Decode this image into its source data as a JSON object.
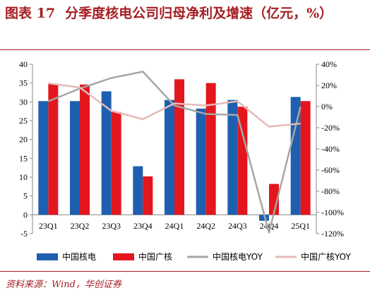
{
  "header": {
    "figure_label": "图表 17",
    "title": "分季度核电公司归母净利及增速（亿元，%）"
  },
  "footer": {
    "source": "资料来源：Wind，华创证券"
  },
  "colors": {
    "cgn_bar": "#1F5FAF",
    "cgn_guang_bar": "#E3161E",
    "cgn_yoy": "#A6A6A6",
    "guang_yoy": "#E6B9B8",
    "accent": "#A51E22"
  },
  "chart_data": {
    "type": "bar",
    "categories": [
      "23Q1",
      "23Q2",
      "23Q3",
      "23Q4",
      "24Q1",
      "24Q2",
      "24Q3",
      "24Q4",
      "25Q1"
    ],
    "series": [
      {
        "name": "中国核电",
        "type": "bar",
        "axis": "left",
        "values": [
          30.2,
          30.2,
          32.8,
          12.9,
          30.5,
          28.2,
          30.5,
          -1.6,
          31.3
        ]
      },
      {
        "name": "中国广核",
        "type": "bar",
        "axis": "left",
        "values": [
          34.8,
          34.6,
          27.3,
          10.2,
          36.0,
          35.0,
          28.7,
          8.2,
          30.2
        ]
      },
      {
        "name": "中国核电YOY",
        "type": "line",
        "axis": "right",
        "values": [
          5,
          17,
          27,
          33,
          1,
          -7,
          -8,
          -119,
          0
        ]
      },
      {
        "name": "中国广核YOY",
        "type": "line",
        "axis": "right",
        "values": [
          22,
          18,
          -4,
          -12,
          3,
          1,
          5,
          -19,
          -16
        ]
      }
    ],
    "y_left": {
      "min": -5,
      "max": 40,
      "ticks": [
        "-5",
        "0",
        "5",
        "10",
        "15",
        "20",
        "25",
        "30",
        "35",
        "40"
      ]
    },
    "y_right": {
      "min": -120,
      "max": 40,
      "ticks": [
        "-120%",
        "-100%",
        "-80%",
        "-60%",
        "-40%",
        "-20%",
        "0%",
        "20%",
        "40%"
      ]
    },
    "legend_position": "bottom",
    "grid": false
  }
}
